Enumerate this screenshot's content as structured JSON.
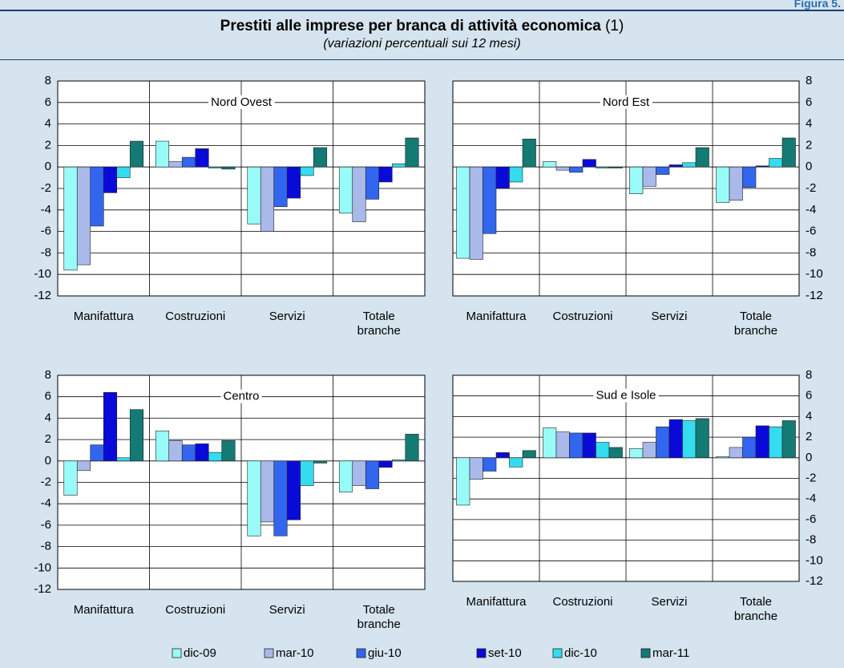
{
  "header": {
    "figure_label": "Figura 5.",
    "title": "Prestiti alle imprese per branca di attività economica",
    "title_note": "(1)",
    "subtitle": "(variazioni percentuali sui 12 mesi)"
  },
  "chart_data": [
    {
      "type": "bar",
      "title": "Nord Ovest",
      "y_axis": "left",
      "categories": [
        "Manifattura",
        "Costruzioni",
        "Servizi",
        "Totale branche"
      ],
      "ylim": [
        -12,
        8
      ],
      "yticks": [
        -12,
        -10,
        -8,
        -6,
        -4,
        -2,
        0,
        2,
        4,
        6,
        8
      ],
      "grid": true,
      "series": [
        {
          "name": "dic-09",
          "color": "#99fbf8",
          "values": [
            -9.6,
            2.4,
            -5.3,
            -4.3
          ]
        },
        {
          "name": "mar-10",
          "color": "#a9b9ea",
          "values": [
            -9.1,
            0.5,
            -6.0,
            -5.1
          ]
        },
        {
          "name": "giu-10",
          "color": "#3366ee",
          "values": [
            -5.5,
            0.9,
            -3.7,
            -3.0
          ]
        },
        {
          "name": "set-10",
          "color": "#0a0ad8",
          "values": [
            -2.4,
            1.7,
            -2.9,
            -1.4
          ]
        },
        {
          "name": "dic-10",
          "color": "#33dcee",
          "values": [
            -1.0,
            -0.1,
            -0.8,
            0.3
          ]
        },
        {
          "name": "mar-11",
          "color": "#137a74",
          "values": [
            2.4,
            -0.2,
            1.8,
            2.7
          ]
        }
      ]
    },
    {
      "type": "bar",
      "title": "Nord Est",
      "y_axis": "right",
      "categories": [
        "Manifattura",
        "Costruzioni",
        "Servizi",
        "Totale branche"
      ],
      "ylim": [
        -12,
        8
      ],
      "yticks": [
        -12,
        -10,
        -8,
        -6,
        -4,
        -2,
        0,
        2,
        4,
        6,
        8
      ],
      "grid": true,
      "series": [
        {
          "name": "dic-09",
          "color": "#99fbf8",
          "values": [
            -8.5,
            0.5,
            -2.5,
            -3.3
          ]
        },
        {
          "name": "mar-10",
          "color": "#a9b9ea",
          "values": [
            -8.6,
            -0.3,
            -1.8,
            -3.1
          ]
        },
        {
          "name": "giu-10",
          "color": "#3366ee",
          "values": [
            -6.2,
            -0.5,
            -0.7,
            -1.9
          ]
        },
        {
          "name": "set-10",
          "color": "#0a0ad8",
          "values": [
            -2.0,
            0.7,
            0.2,
            0.1
          ]
        },
        {
          "name": "dic-10",
          "color": "#33dcee",
          "values": [
            -1.4,
            -0.1,
            0.4,
            0.8
          ]
        },
        {
          "name": "mar-11",
          "color": "#137a74",
          "values": [
            2.6,
            -0.1,
            1.8,
            2.7
          ]
        }
      ]
    },
    {
      "type": "bar",
      "title": "Centro",
      "y_axis": "left",
      "categories": [
        "Manifattura",
        "Costruzioni",
        "Servizi",
        "Totale branche"
      ],
      "ylim": [
        -12,
        8
      ],
      "yticks": [
        -12,
        -10,
        -8,
        -6,
        -4,
        -2,
        0,
        2,
        4,
        6,
        8
      ],
      "grid": true,
      "series": [
        {
          "name": "dic-09",
          "color": "#99fbf8",
          "values": [
            -3.2,
            2.8,
            -7.0,
            -2.9
          ]
        },
        {
          "name": "mar-10",
          "color": "#a9b9ea",
          "values": [
            -0.9,
            1.9,
            -5.7,
            -2.3
          ]
        },
        {
          "name": "giu-10",
          "color": "#3366ee",
          "values": [
            1.5,
            1.5,
            -7.0,
            -2.6
          ]
        },
        {
          "name": "set-10",
          "color": "#0a0ad8",
          "values": [
            6.4,
            1.6,
            -5.5,
            -0.6
          ]
        },
        {
          "name": "dic-10",
          "color": "#33dcee",
          "values": [
            0.3,
            0.8,
            -2.3,
            0.1
          ]
        },
        {
          "name": "mar-11",
          "color": "#137a74",
          "values": [
            4.8,
            1.9,
            -0.2,
            2.5
          ]
        }
      ]
    },
    {
      "type": "bar",
      "title": "Sud e Isole",
      "y_axis": "right",
      "categories": [
        "Manifattura",
        "Costruzioni",
        "Servizi",
        "Totale branche"
      ],
      "ylim": [
        -12,
        8
      ],
      "yticks": [
        -12,
        -10,
        -8,
        -6,
        -4,
        -2,
        0,
        2,
        4,
        6,
        8
      ],
      "grid": true,
      "series": [
        {
          "name": "dic-09",
          "color": "#99fbf8",
          "values": [
            -4.6,
            2.9,
            0.9,
            0.1
          ]
        },
        {
          "name": "mar-10",
          "color": "#a9b9ea",
          "values": [
            -2.1,
            2.5,
            1.5,
            1.0
          ]
        },
        {
          "name": "giu-10",
          "color": "#3366ee",
          "values": [
            -1.3,
            2.4,
            3.0,
            2.0
          ]
        },
        {
          "name": "set-10",
          "color": "#0a0ad8",
          "values": [
            0.5,
            2.4,
            3.7,
            3.1
          ]
        },
        {
          "name": "dic-10",
          "color": "#33dcee",
          "values": [
            -0.9,
            1.5,
            3.6,
            3.0
          ]
        },
        {
          "name": "mar-11",
          "color": "#137a74",
          "values": [
            0.7,
            1.0,
            3.8,
            3.6
          ]
        }
      ]
    }
  ]
}
